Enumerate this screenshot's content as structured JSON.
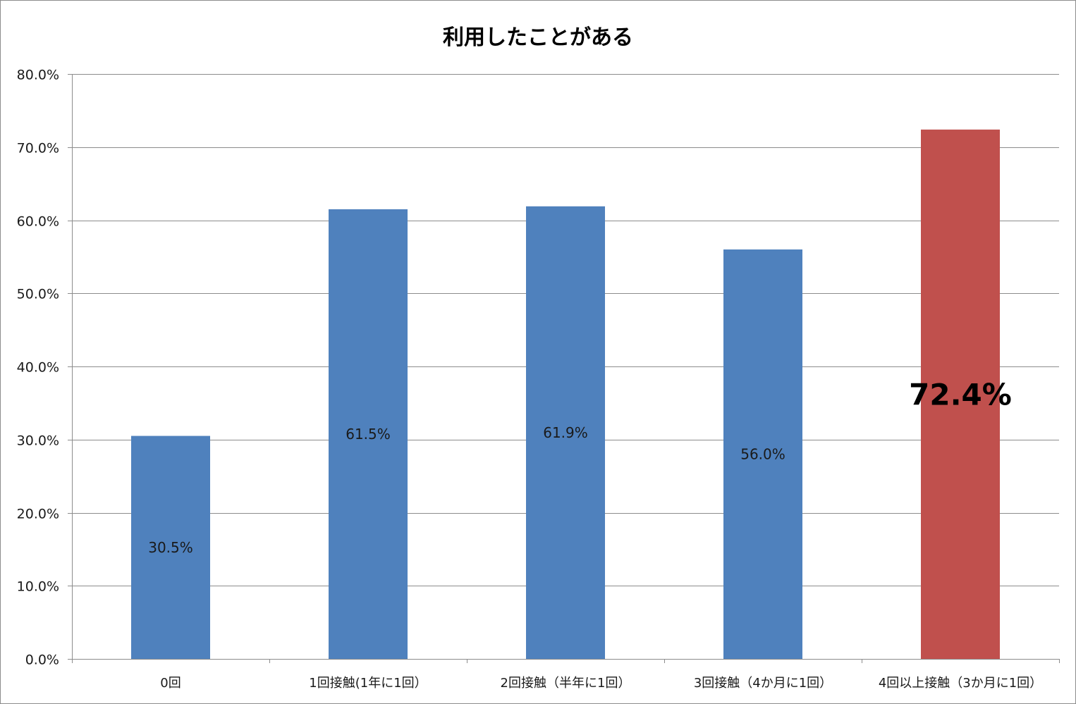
{
  "chart_data": {
    "type": "bar",
    "title": "利用したことがある",
    "categories": [
      "0回",
      "1回接触(1年に1回）",
      "2回接触（半年に1回）",
      "3回接触（4か月に1回）",
      "4回以上接触（3か月に1回）"
    ],
    "values": [
      30.5,
      61.5,
      61.9,
      56.0,
      72.4
    ],
    "data_labels": [
      "30.5%",
      "61.5%",
      "61.9%",
      "56.0%",
      "72.4%"
    ],
    "highlight_index": 4,
    "ylim": [
      0,
      80
    ],
    "yticks": [
      0,
      10,
      20,
      30,
      40,
      50,
      60,
      70,
      80
    ],
    "ytick_labels": [
      "0.0%",
      "10.0%",
      "20.0%",
      "30.0%",
      "40.0%",
      "50.0%",
      "60.0%",
      "70.0%",
      "80.0%"
    ],
    "xlabel": "",
    "ylabel": "",
    "grid": true,
    "legend": "none",
    "colors": {
      "bar": "#4f81bd",
      "highlight": "#c0504d",
      "gridline": "#8c8c8c",
      "axis": "#8c8c8c"
    }
  }
}
